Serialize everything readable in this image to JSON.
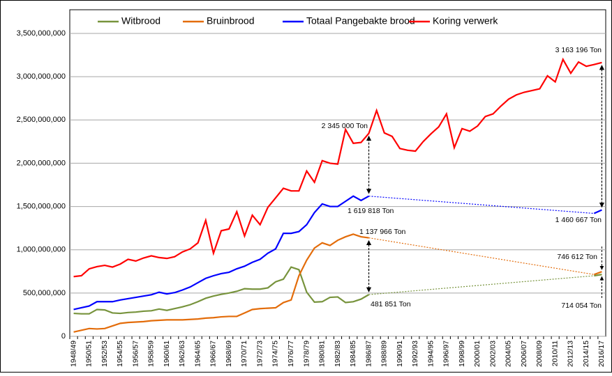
{
  "chart_data": {
    "type": "line",
    "categories": [
      "1948/49",
      null,
      "1950/51",
      null,
      "1952/53",
      null,
      "1954/55",
      null,
      "1956/57",
      null,
      "1958/59",
      null,
      "1960/61",
      null,
      "1962/63",
      null,
      "1964/65",
      null,
      "1966/67",
      null,
      "1968/69",
      null,
      "1970/71",
      null,
      "1972/73",
      null,
      "1974/75",
      null,
      "1976/77",
      null,
      "1978/79",
      null,
      "1980/81",
      null,
      "1982/83",
      null,
      "1984/85",
      null,
      "1986/87",
      null,
      "1988/89",
      null,
      "1990/91",
      null,
      "1992/93",
      null,
      "1994/95",
      null,
      "1996/97",
      null,
      "1998/99",
      null,
      "2000/01",
      null,
      "2002/03",
      null,
      "2004/05",
      null,
      "2006/07",
      null,
      "2008/09",
      null,
      "2010/11",
      null,
      "2012/13",
      null,
      "2014/15",
      null,
      "2016/17"
    ],
    "series": [
      {
        "name": "Witbrood",
        "color": "#77933c",
        "values": [
          265000000.0,
          260000000.0,
          260000000.0,
          310000000.0,
          305000000.0,
          270000000.0,
          265000000.0,
          275000000.0,
          280000000.0,
          290000000.0,
          295000000.0,
          315000000.0,
          300000000.0,
          320000000.0,
          340000000.0,
          365000000.0,
          400000000.0,
          440000000.0,
          465000000.0,
          485000000.0,
          500000000.0,
          520000000.0,
          550000000.0,
          545000000.0,
          545000000.0,
          560000000.0,
          630000000.0,
          660000000.0,
          800000000.0,
          770000000.0,
          510000000.0,
          395000000.0,
          400000000.0,
          450000000.0,
          455000000.0,
          390000000.0,
          400000000.0,
          430000000.0,
          481851000.0,
          null,
          null,
          null,
          null,
          null,
          null,
          null,
          null,
          null,
          null,
          null,
          null,
          null,
          null,
          null,
          null,
          null,
          null,
          null,
          null,
          null,
          null,
          null,
          null,
          null,
          null,
          null,
          null,
          700000000.0,
          714054000.0
        ]
      },
      {
        "name": "Bruinbrood",
        "color": "#e36c0a",
        "values": [
          50000000.0,
          70000000.0,
          90000000.0,
          85000000.0,
          90000000.0,
          120000000.0,
          150000000.0,
          160000000.0,
          165000000.0,
          170000000.0,
          180000000.0,
          185000000.0,
          190000000.0,
          190000000.0,
          190000000.0,
          195000000.0,
          200000000.0,
          210000000.0,
          215000000.0,
          225000000.0,
          230000000.0,
          230000000.0,
          270000000.0,
          310000000.0,
          320000000.0,
          325000000.0,
          330000000.0,
          390000000.0,
          420000000.0,
          700000000.0,
          880000000.0,
          1020000000.0,
          1080000000.0,
          1050000000.0,
          1110000000.0,
          1150000000.0,
          1180000000.0,
          1150000000.0,
          1137966000.0,
          null,
          null,
          null,
          null,
          null,
          null,
          null,
          null,
          null,
          null,
          null,
          null,
          null,
          null,
          null,
          null,
          null,
          null,
          null,
          null,
          null,
          null,
          null,
          null,
          null,
          null,
          null,
          null,
          714000000.0,
          746612000.0
        ]
      },
      {
        "name": "Totaal Pangebakte brood",
        "color": "#0000ff",
        "values": [
          310000000.0,
          330000000.0,
          350000000.0,
          400000000.0,
          400000000.0,
          400000000.0,
          420000000.0,
          435000000.0,
          450000000.0,
          465000000.0,
          480000000.0,
          510000000.0,
          490000000.0,
          505000000.0,
          535000000.0,
          570000000.0,
          620000000.0,
          670000000.0,
          700000000.0,
          725000000.0,
          740000000.0,
          780000000.0,
          810000000.0,
          855000000.0,
          890000000.0,
          960000000.0,
          1010000000.0,
          1190000000.0,
          1190000000.0,
          1210000000.0,
          1290000000.0,
          1430000000.0,
          1530000000.0,
          1500000000.0,
          1500000000.0,
          1560000000.0,
          1620000000.0,
          1570000000.0,
          1619818000.0,
          null,
          null,
          null,
          null,
          null,
          null,
          null,
          null,
          null,
          null,
          null,
          null,
          null,
          null,
          null,
          null,
          null,
          null,
          null,
          null,
          null,
          null,
          null,
          null,
          null,
          null,
          null,
          null,
          1420000000.0,
          1460667000.0
        ]
      },
      {
        "name": "Koring verwerk",
        "color": "#ff0000",
        "values": [
          690000000.0,
          700000000.0,
          780000000.0,
          805000000.0,
          820000000.0,
          800000000.0,
          835000000.0,
          890000000.0,
          870000000.0,
          905000000.0,
          930000000.0,
          910000000.0,
          900000000.0,
          920000000.0,
          975000000.0,
          1010000000.0,
          1080000000.0,
          1340000000.0,
          960000000.0,
          1220000000.0,
          1240000000.0,
          1440000000.0,
          1160000000.0,
          1400000000.0,
          1290000000.0,
          1490000000.0,
          1600000000.0,
          1710000000.0,
          1680000000.0,
          1680000000.0,
          1910000000.0,
          1780000000.0,
          2030000000.0,
          2000000000.0,
          1990000000.0,
          2390000000.0,
          2230000000.0,
          2240000000.0,
          2345000000.0,
          2610000000.0,
          2350000000.0,
          2310000000.0,
          2170000000.0,
          2150000000.0,
          2140000000.0,
          2250000000.0,
          2340000000.0,
          2420000000.0,
          2570000000.0,
          2180000000.0,
          2400000000.0,
          2370000000.0,
          2430000000.0,
          2540000000.0,
          2570000000.0,
          2660000000.0,
          2740000000.0,
          2790000000.0,
          2820000000.0,
          2840000000.0,
          2860000000.0,
          3010000000.0,
          2940000000.0,
          3200000000.0,
          3040000000.0,
          3170000000.0,
          3120000000.0,
          3140000000.0,
          3163196000.0
        ]
      }
    ],
    "ylim": [
      0,
      3500000000.0
    ],
    "yticks": [
      0,
      {
        "value": 500000000.0,
        "label": "500,000,000"
      },
      {
        "value": 1000000000.0,
        "label": "1,000,000,000"
      },
      {
        "value": 1500000000.0,
        "label": "1,500,000,000"
      },
      {
        "value": 2000000000.0,
        "label": "2,000,000,000"
      },
      {
        "value": 2500000000.0,
        "label": "2,500,000,000"
      },
      {
        "value": 3000000000.0,
        "label": "3,000,000,000"
      },
      {
        "value": 3500000000.0,
        "label": "3,500,000,000"
      }
    ],
    "grid": true,
    "legend": "top",
    "annotations": [
      "2 345 000 Ton",
      "1 619 818 Ton",
      "1 137 966 Ton",
      "481 851 Ton",
      "3 163 196 Ton",
      "1 460 667 Ton",
      "746 612 Ton",
      "714 054 Ton"
    ]
  }
}
